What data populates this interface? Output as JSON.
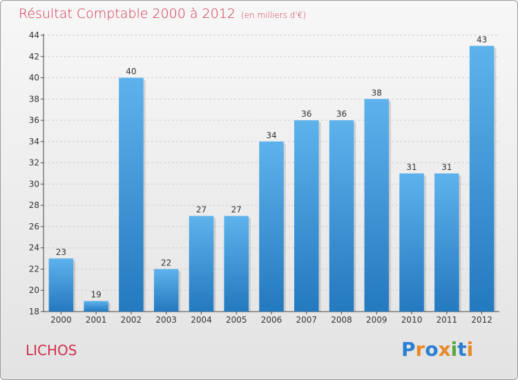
{
  "header": {
    "title": "Résultat Comptable 2000 à 2012",
    "unit": "(en milliers d'€)"
  },
  "commune": "LICHOS",
  "logo": {
    "letters": [
      "P",
      "r",
      "o",
      "x",
      "i",
      "t",
      "i"
    ],
    "colors": [
      "#2a7fd4",
      "#e8892a",
      "#2a7fd4",
      "#e8892a",
      "#5aa63a",
      "#2a7fd4",
      "#e8892a"
    ]
  },
  "colors": {
    "bar_light": "#5eb2ec",
    "bar_dark": "#2479bf",
    "grid": "#cccccc",
    "title": "#d0304a"
  },
  "chart_data": {
    "type": "bar",
    "categories": [
      "2000",
      "2001",
      "2002",
      "2003",
      "2004",
      "2005",
      "2006",
      "2007",
      "2008",
      "2009",
      "2010",
      "2011",
      "2012"
    ],
    "values": [
      23,
      19,
      40,
      22,
      27,
      27,
      34,
      36,
      36,
      38,
      31,
      31,
      43
    ],
    "title": "Résultat Comptable 2000 à 2012",
    "ylim": [
      18,
      44
    ],
    "yticks": [
      18,
      20,
      22,
      24,
      26,
      28,
      30,
      32,
      34,
      36,
      38,
      40,
      42,
      44
    ],
    "grid": true,
    "legend": "none"
  }
}
